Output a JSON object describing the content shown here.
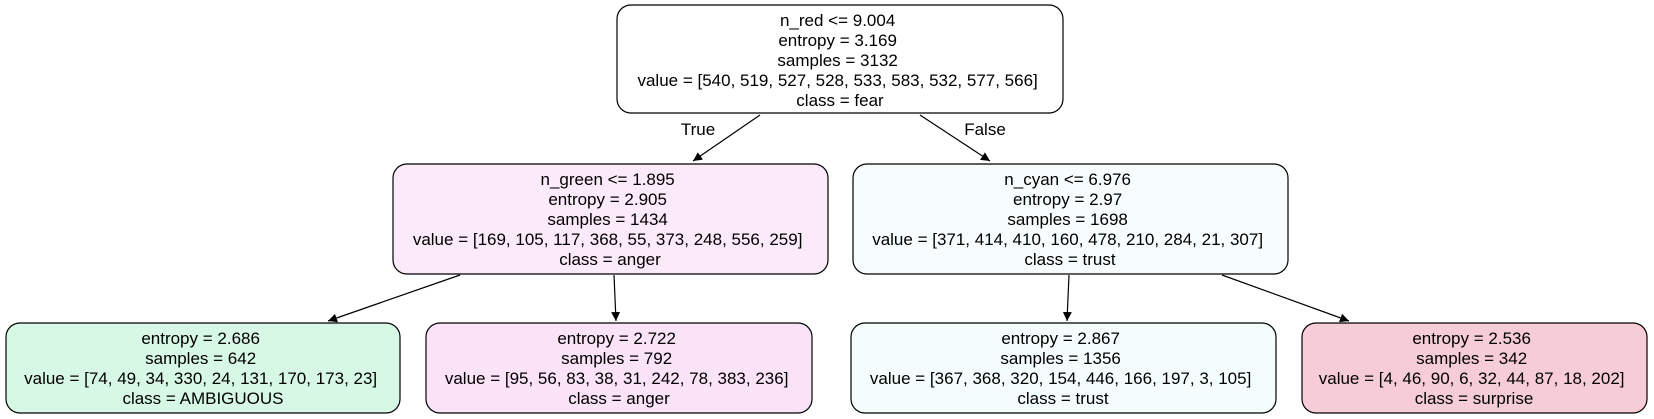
{
  "tree": {
    "root": {
      "lines": [
        "n_red <= 9.004",
        "entropy = 3.169",
        "samples = 3132",
        "value = [540, 519, 527, 528, 533, 583, 532, 577, 566]",
        "class = fear"
      ],
      "fill": "#ffffff"
    },
    "left": {
      "lines": [
        "n_green <= 1.895",
        "entropy = 2.905",
        "samples = 1434",
        "value = [169, 105, 117, 368, 55, 373, 248, 556, 259]",
        "class = anger"
      ],
      "fill": "#fbeaf9"
    },
    "right": {
      "lines": [
        "n_cyan <= 6.976",
        "entropy = 2.97",
        "samples = 1698",
        "value = [371, 414, 410, 160, 478, 210, 284, 21, 307]",
        "class = trust"
      ],
      "fill": "#f7fcfd"
    },
    "left_left": {
      "lines": [
        "entropy = 2.686",
        "samples = 642",
        "value = [74, 49, 34, 330, 24, 131, 170, 173, 23]",
        "class = AMBIGUOUS"
      ],
      "fill": "#d8f8e6"
    },
    "left_right": {
      "lines": [
        "entropy = 2.722",
        "samples = 792",
        "value = [95, 56, 83, 38, 31, 242, 78, 383, 236]",
        "class = anger"
      ],
      "fill": "#fae2f7"
    },
    "right_left": {
      "lines": [
        "entropy = 2.867",
        "samples = 1356",
        "value = [367, 368, 320, 154, 446, 166, 197, 3, 105]",
        "class = trust"
      ],
      "fill": "#f3fdfc"
    },
    "right_right": {
      "lines": [
        "entropy = 2.536",
        "samples = 342",
        "value = [4, 46, 90, 6, 32, 44, 87, 18, 202]",
        "class = surprise"
      ],
      "fill": "#f6cdd6"
    },
    "edge_true_label": "True",
    "edge_false_label": "False"
  }
}
